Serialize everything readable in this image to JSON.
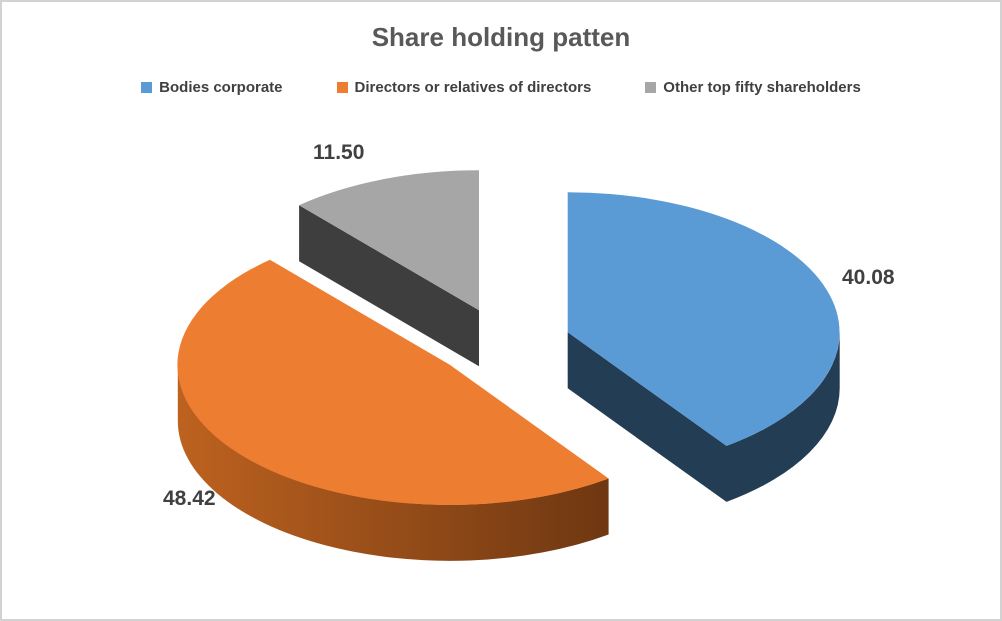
{
  "window": {
    "background": "#FFFFFF",
    "border_color": "#D2D2D2"
  },
  "chart_data": {
    "type": "pie",
    "style": "3d-exploded",
    "title": "Share holding patten",
    "title_color": "#595959",
    "data_label_color": "#404040",
    "legend_position": "top",
    "legend_text_color": "#404040",
    "start_angle_deg": -90,
    "direction": "clockwise",
    "total": 100.0,
    "slices": [
      {
        "label": "Bodies corporate",
        "value": 40.08,
        "display_value": "40.08",
        "color": "#5B9BD5",
        "side_color": "#233D54"
      },
      {
        "label": "Directors or relatives of directors",
        "value": 48.42,
        "display_value": "48.42",
        "color": "#ED7D31",
        "side_color": [
          "#BD621F",
          "#5A2C0E"
        ]
      },
      {
        "label": "Other top fifty shareholders",
        "value": 11.5,
        "display_value": "11.50",
        "color": "#A6A6A6",
        "side_color": "#3E3E3E"
      }
    ]
  }
}
